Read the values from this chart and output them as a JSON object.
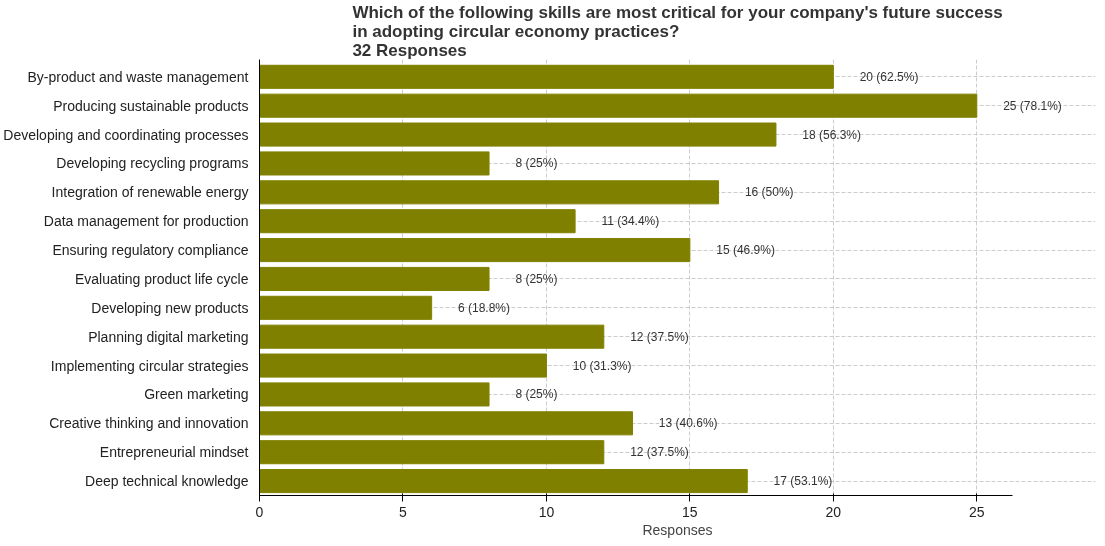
{
  "chart_data": {
    "type": "bar",
    "orientation": "horizontal",
    "title": "Which of the following skills are most critical for your company's future success\nin adopting circular economy practices?\n32 Responses",
    "xlabel": "Responses",
    "categories": [
      "By-product and waste management",
      "Producing sustainable products",
      "Developing and coordinating processes",
      "Developing recycling programs",
      "Integration of renewable energy",
      "Data management for production",
      "Ensuring regulatory compliance",
      "Evaluating product life cycle",
      "Developing new products",
      "Planning digital marketing",
      "Implementing circular strategies",
      "Green marketing",
      "Creative thinking and innovation",
      "Entrepreneurial mindset",
      "Deep technical knowledge"
    ],
    "values": [
      20,
      25,
      18,
      8,
      16,
      11,
      15,
      8,
      6,
      12,
      10,
      8,
      13,
      12,
      17
    ],
    "value_labels": [
      "20 (62.5%)",
      "25 (78.1%)",
      "18 (56.3%)",
      "8 (25%)",
      "16 (50%)",
      "11 (34.4%)",
      "15 (46.9%)",
      "8 (25%)",
      "6 (18.8%)",
      "12 (37.5%)",
      "10 (31.3%)",
      "8 (25%)",
      "13 (40.6%)",
      "12 (37.5%)",
      "17 (53.1%)"
    ],
    "color": "#808000",
    "xlim": [
      0,
      26.25
    ],
    "xticks": [
      0,
      5,
      10,
      15,
      20,
      25
    ],
    "grid": true
  }
}
